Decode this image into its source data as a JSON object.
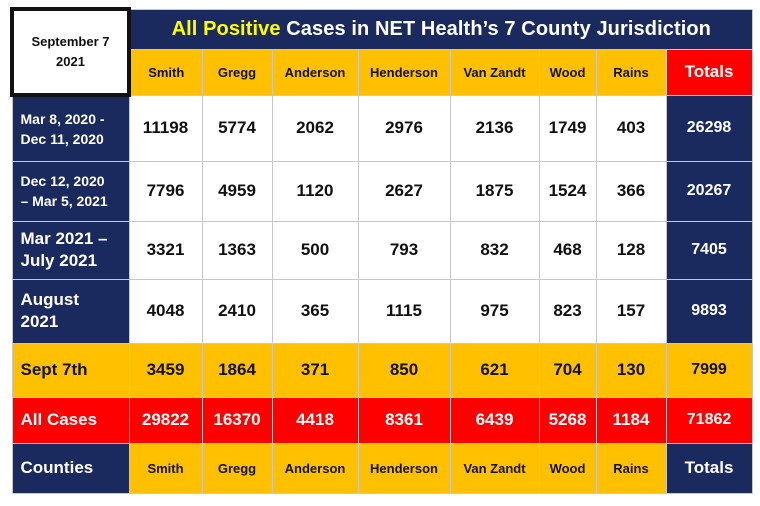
{
  "date_box": {
    "line1": "September 7",
    "line2": "2021"
  },
  "title": {
    "highlight": "All Positive",
    "rest": " Cases in NET Health’s 7 County Jurisdiction"
  },
  "columns": [
    "Smith",
    "Gregg",
    "Anderson",
    "Henderson",
    "Van Zandt",
    "Wood",
    "Rains",
    "Totals"
  ],
  "rows": [
    {
      "label_line1": "Mar 8, 2020 -",
      "label_line2": "Dec 11, 2020",
      "values": [
        "11198",
        "5774",
        "2062",
        "2976",
        "2136",
        "1749",
        "403",
        "26298"
      ]
    },
    {
      "label_line1": "Dec 12, 2020",
      "label_line2": "– Mar 5, 2021",
      "values": [
        "7796",
        "4959",
        "1120",
        "2627",
        "1875",
        "1524",
        "366",
        "20267"
      ]
    },
    {
      "label_line1": "Mar 2021 –",
      "label_line2": "July 2021",
      "values": [
        "3321",
        "1363",
        "500",
        "793",
        "832",
        "468",
        "128",
        "7405"
      ]
    },
    {
      "label_line1": "August",
      "label_line2": "2021",
      "values": [
        "4048",
        "2410",
        "365",
        "1115",
        "975",
        "823",
        "157",
        "9893"
      ]
    },
    {
      "label_line1": "Sept 7th",
      "values": [
        "3459",
        "1864",
        "371",
        "850",
        "621",
        "704",
        "130",
        "7999"
      ]
    },
    {
      "label_line1": "All Cases",
      "values": [
        "29822",
        "16370",
        "4418",
        "8361",
        "6439",
        "5268",
        "1184",
        "71862"
      ]
    }
  ],
  "footer": {
    "label": "Counties"
  },
  "colors": {
    "navy": "#1b2a5e",
    "gold": "#ffc000",
    "red": "#ff0000",
    "title_highlight": "#ffff00"
  }
}
